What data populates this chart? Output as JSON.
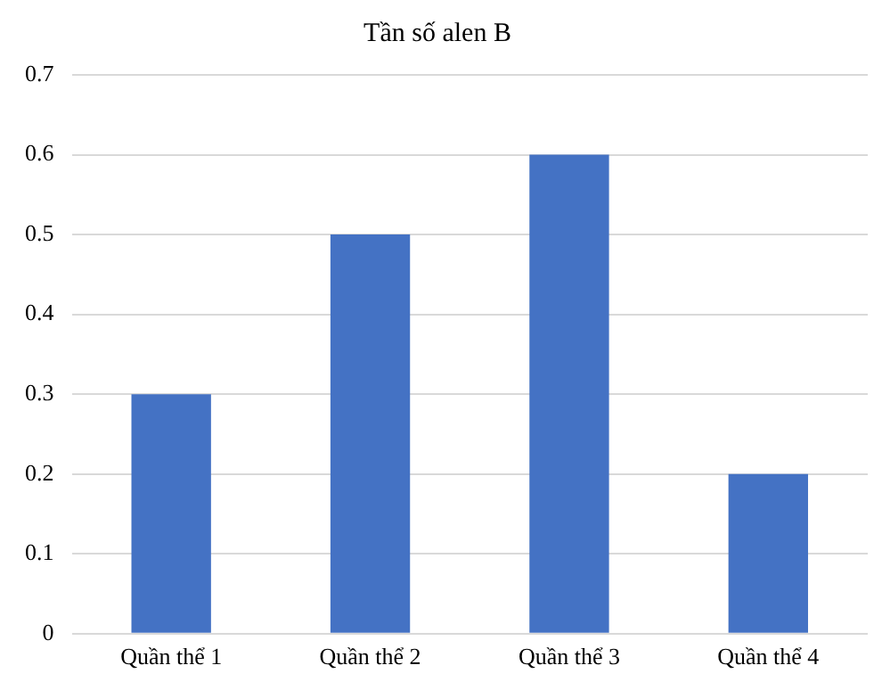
{
  "chart_data": {
    "type": "bar",
    "title": "Tần số alen B",
    "categories": [
      "Quần thể 1",
      "Quần thể 2",
      "Quần thể 3",
      "Quần thể 4"
    ],
    "values": [
      0.3,
      0.5,
      0.6,
      0.2
    ],
    "color": "#4472c4",
    "ylim": [
      0,
      0.7
    ],
    "yticks": [
      0,
      0.1,
      0.2,
      0.3,
      0.4,
      0.5,
      0.6,
      0.7
    ],
    "grid": "y",
    "legend": false
  }
}
